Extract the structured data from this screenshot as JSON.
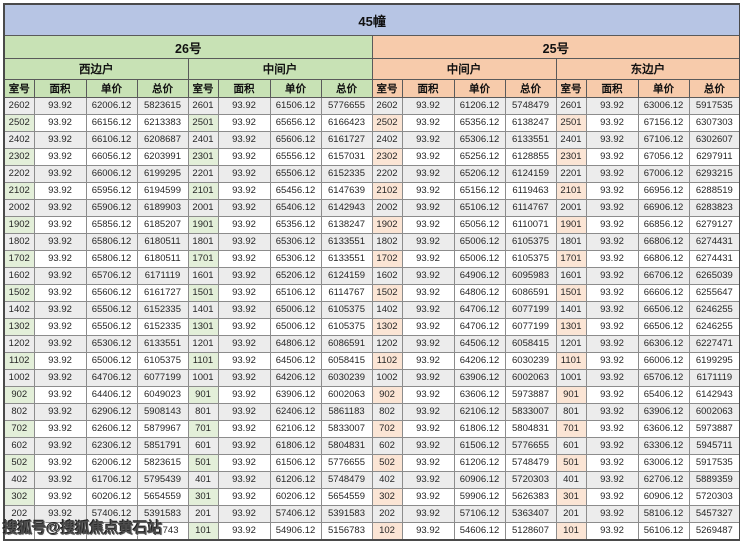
{
  "chart_data": {
    "type": "table",
    "title": "45幢",
    "groups": [
      {
        "building": "26号",
        "unit": "西边户"
      },
      {
        "building": "26号",
        "unit": "中间户"
      },
      {
        "building": "25号",
        "unit": "中间户"
      },
      {
        "building": "25号",
        "unit": "东边户"
      }
    ],
    "columns": [
      "室号",
      "面积",
      "单价",
      "总价"
    ],
    "rows": [
      [
        "2602",
        "93.92",
        "62006.12",
        "5823615",
        "2601",
        "93.92",
        "61506.12",
        "5776655",
        "2602",
        "93.92",
        "61206.12",
        "5748479",
        "2601",
        "93.92",
        "63006.12",
        "5917535"
      ],
      [
        "2502",
        "93.92",
        "66156.12",
        "6213383",
        "2501",
        "93.92",
        "65656.12",
        "6166423",
        "2502",
        "93.92",
        "65356.12",
        "6138247",
        "2501",
        "93.92",
        "67156.12",
        "6307303"
      ],
      [
        "2402",
        "93.92",
        "66106.12",
        "6208687",
        "2401",
        "93.92",
        "65606.12",
        "6161727",
        "2402",
        "93.92",
        "65306.12",
        "6133551",
        "2401",
        "93.92",
        "67106.12",
        "6302607"
      ],
      [
        "2302",
        "93.92",
        "66056.12",
        "6203991",
        "2301",
        "93.92",
        "65556.12",
        "6157031",
        "2302",
        "93.92",
        "65256.12",
        "6128855",
        "2301",
        "93.92",
        "67056.12",
        "6297911"
      ],
      [
        "2202",
        "93.92",
        "66006.12",
        "6199295",
        "2201",
        "93.92",
        "65506.12",
        "6152335",
        "2202",
        "93.92",
        "65206.12",
        "6124159",
        "2201",
        "93.92",
        "67006.12",
        "6293215"
      ],
      [
        "2102",
        "93.92",
        "65956.12",
        "6194599",
        "2101",
        "93.92",
        "65456.12",
        "6147639",
        "2102",
        "93.92",
        "65156.12",
        "6119463",
        "2101",
        "93.92",
        "66956.12",
        "6288519"
      ],
      [
        "2002",
        "93.92",
        "65906.12",
        "6189903",
        "2001",
        "93.92",
        "65406.12",
        "6142943",
        "2002",
        "93.92",
        "65106.12",
        "6114767",
        "2001",
        "93.92",
        "66906.12",
        "6283823"
      ],
      [
        "1902",
        "93.92",
        "65856.12",
        "6185207",
        "1901",
        "93.92",
        "65356.12",
        "6138247",
        "1902",
        "93.92",
        "65056.12",
        "6110071",
        "1901",
        "93.92",
        "66856.12",
        "6279127"
      ],
      [
        "1802",
        "93.92",
        "65806.12",
        "6180511",
        "1801",
        "93.92",
        "65306.12",
        "6133551",
        "1802",
        "93.92",
        "65006.12",
        "6105375",
        "1801",
        "93.92",
        "66806.12",
        "6274431"
      ],
      [
        "1702",
        "93.92",
        "65806.12",
        "6180511",
        "1701",
        "93.92",
        "65306.12",
        "6133551",
        "1702",
        "93.92",
        "65006.12",
        "6105375",
        "1701",
        "93.92",
        "66806.12",
        "6274431"
      ],
      [
        "1602",
        "93.92",
        "65706.12",
        "6171119",
        "1601",
        "93.92",
        "65206.12",
        "6124159",
        "1602",
        "93.92",
        "64906.12",
        "6095983",
        "1601",
        "93.92",
        "66706.12",
        "6265039"
      ],
      [
        "1502",
        "93.92",
        "65606.12",
        "6161727",
        "1501",
        "93.92",
        "65106.12",
        "6114767",
        "1502",
        "93.92",
        "64806.12",
        "6086591",
        "1501",
        "93.92",
        "66606.12",
        "6255647"
      ],
      [
        "1402",
        "93.92",
        "65506.12",
        "6152335",
        "1401",
        "93.92",
        "65006.12",
        "6105375",
        "1402",
        "93.92",
        "64706.12",
        "6077199",
        "1401",
        "93.92",
        "66506.12",
        "6246255"
      ],
      [
        "1302",
        "93.92",
        "65506.12",
        "6152335",
        "1301",
        "93.92",
        "65006.12",
        "6105375",
        "1302",
        "93.92",
        "64706.12",
        "6077199",
        "1301",
        "93.92",
        "66506.12",
        "6246255"
      ],
      [
        "1202",
        "93.92",
        "65306.12",
        "6133551",
        "1201",
        "93.92",
        "64806.12",
        "6086591",
        "1202",
        "93.92",
        "64506.12",
        "6058415",
        "1201",
        "93.92",
        "66306.12",
        "6227471"
      ],
      [
        "1102",
        "93.92",
        "65006.12",
        "6105375",
        "1101",
        "93.92",
        "64506.12",
        "6058415",
        "1102",
        "93.92",
        "64206.12",
        "6030239",
        "1101",
        "93.92",
        "66006.12",
        "6199295"
      ],
      [
        "1002",
        "93.92",
        "64706.12",
        "6077199",
        "1001",
        "93.92",
        "64206.12",
        "6030239",
        "1002",
        "93.92",
        "63906.12",
        "6002063",
        "1001",
        "93.92",
        "65706.12",
        "6171119"
      ],
      [
        "902",
        "93.92",
        "64406.12",
        "6049023",
        "901",
        "93.92",
        "63906.12",
        "6002063",
        "902",
        "93.92",
        "63606.12",
        "5973887",
        "901",
        "93.92",
        "65406.12",
        "6142943"
      ],
      [
        "802",
        "93.92",
        "62906.12",
        "5908143",
        "801",
        "93.92",
        "62406.12",
        "5861183",
        "802",
        "93.92",
        "62106.12",
        "5833007",
        "801",
        "93.92",
        "63906.12",
        "6002063"
      ],
      [
        "702",
        "93.92",
        "62606.12",
        "5879967",
        "701",
        "93.92",
        "62106.12",
        "5833007",
        "702",
        "93.92",
        "61806.12",
        "5804831",
        "701",
        "93.92",
        "63606.12",
        "5973887"
      ],
      [
        "602",
        "93.92",
        "62306.12",
        "5851791",
        "601",
        "93.92",
        "61806.12",
        "5804831",
        "602",
        "93.92",
        "61506.12",
        "5776655",
        "601",
        "93.92",
        "63306.12",
        "5945711"
      ],
      [
        "502",
        "93.92",
        "62006.12",
        "5823615",
        "501",
        "93.92",
        "61506.12",
        "5776655",
        "502",
        "93.92",
        "61206.12",
        "5748479",
        "501",
        "93.92",
        "63006.12",
        "5917535"
      ],
      [
        "402",
        "93.92",
        "61706.12",
        "5795439",
        "401",
        "93.92",
        "61206.12",
        "5748479",
        "402",
        "93.92",
        "60906.12",
        "5720303",
        "401",
        "93.92",
        "62706.12",
        "5889359"
      ],
      [
        "302",
        "93.92",
        "60206.12",
        "5654559",
        "301",
        "93.92",
        "60206.12",
        "5654559",
        "302",
        "93.92",
        "59906.12",
        "5626383",
        "301",
        "93.92",
        "60906.12",
        "5720303"
      ],
      [
        "202",
        "93.92",
        "57406.12",
        "5391583",
        "201",
        "93.92",
        "57406.12",
        "5391583",
        "202",
        "93.92",
        "57106.12",
        "5363407",
        "201",
        "93.92",
        "58106.12",
        "5457327"
      ],
      [
        "",
        "",
        "",
        "743",
        "101",
        "93.92",
        "54906.12",
        "5156783",
        "102",
        "93.92",
        "54606.12",
        "5128607",
        "101",
        "93.92",
        "56106.12",
        "5269487"
      ]
    ]
  },
  "watermark": {
    "text": "搜狐号@搜狐焦点黄石站"
  },
  "colors": {
    "title_bg": "#b7c5e4",
    "green_header_bg": "#c8e2b5",
    "green_room_bg": "#e3efd9",
    "orange_header_bg": "#f7cbab",
    "orange_room_bg": "#fbe5d5",
    "stripe_bg": "#ececec",
    "grid_border": "#8c8c8c"
  }
}
